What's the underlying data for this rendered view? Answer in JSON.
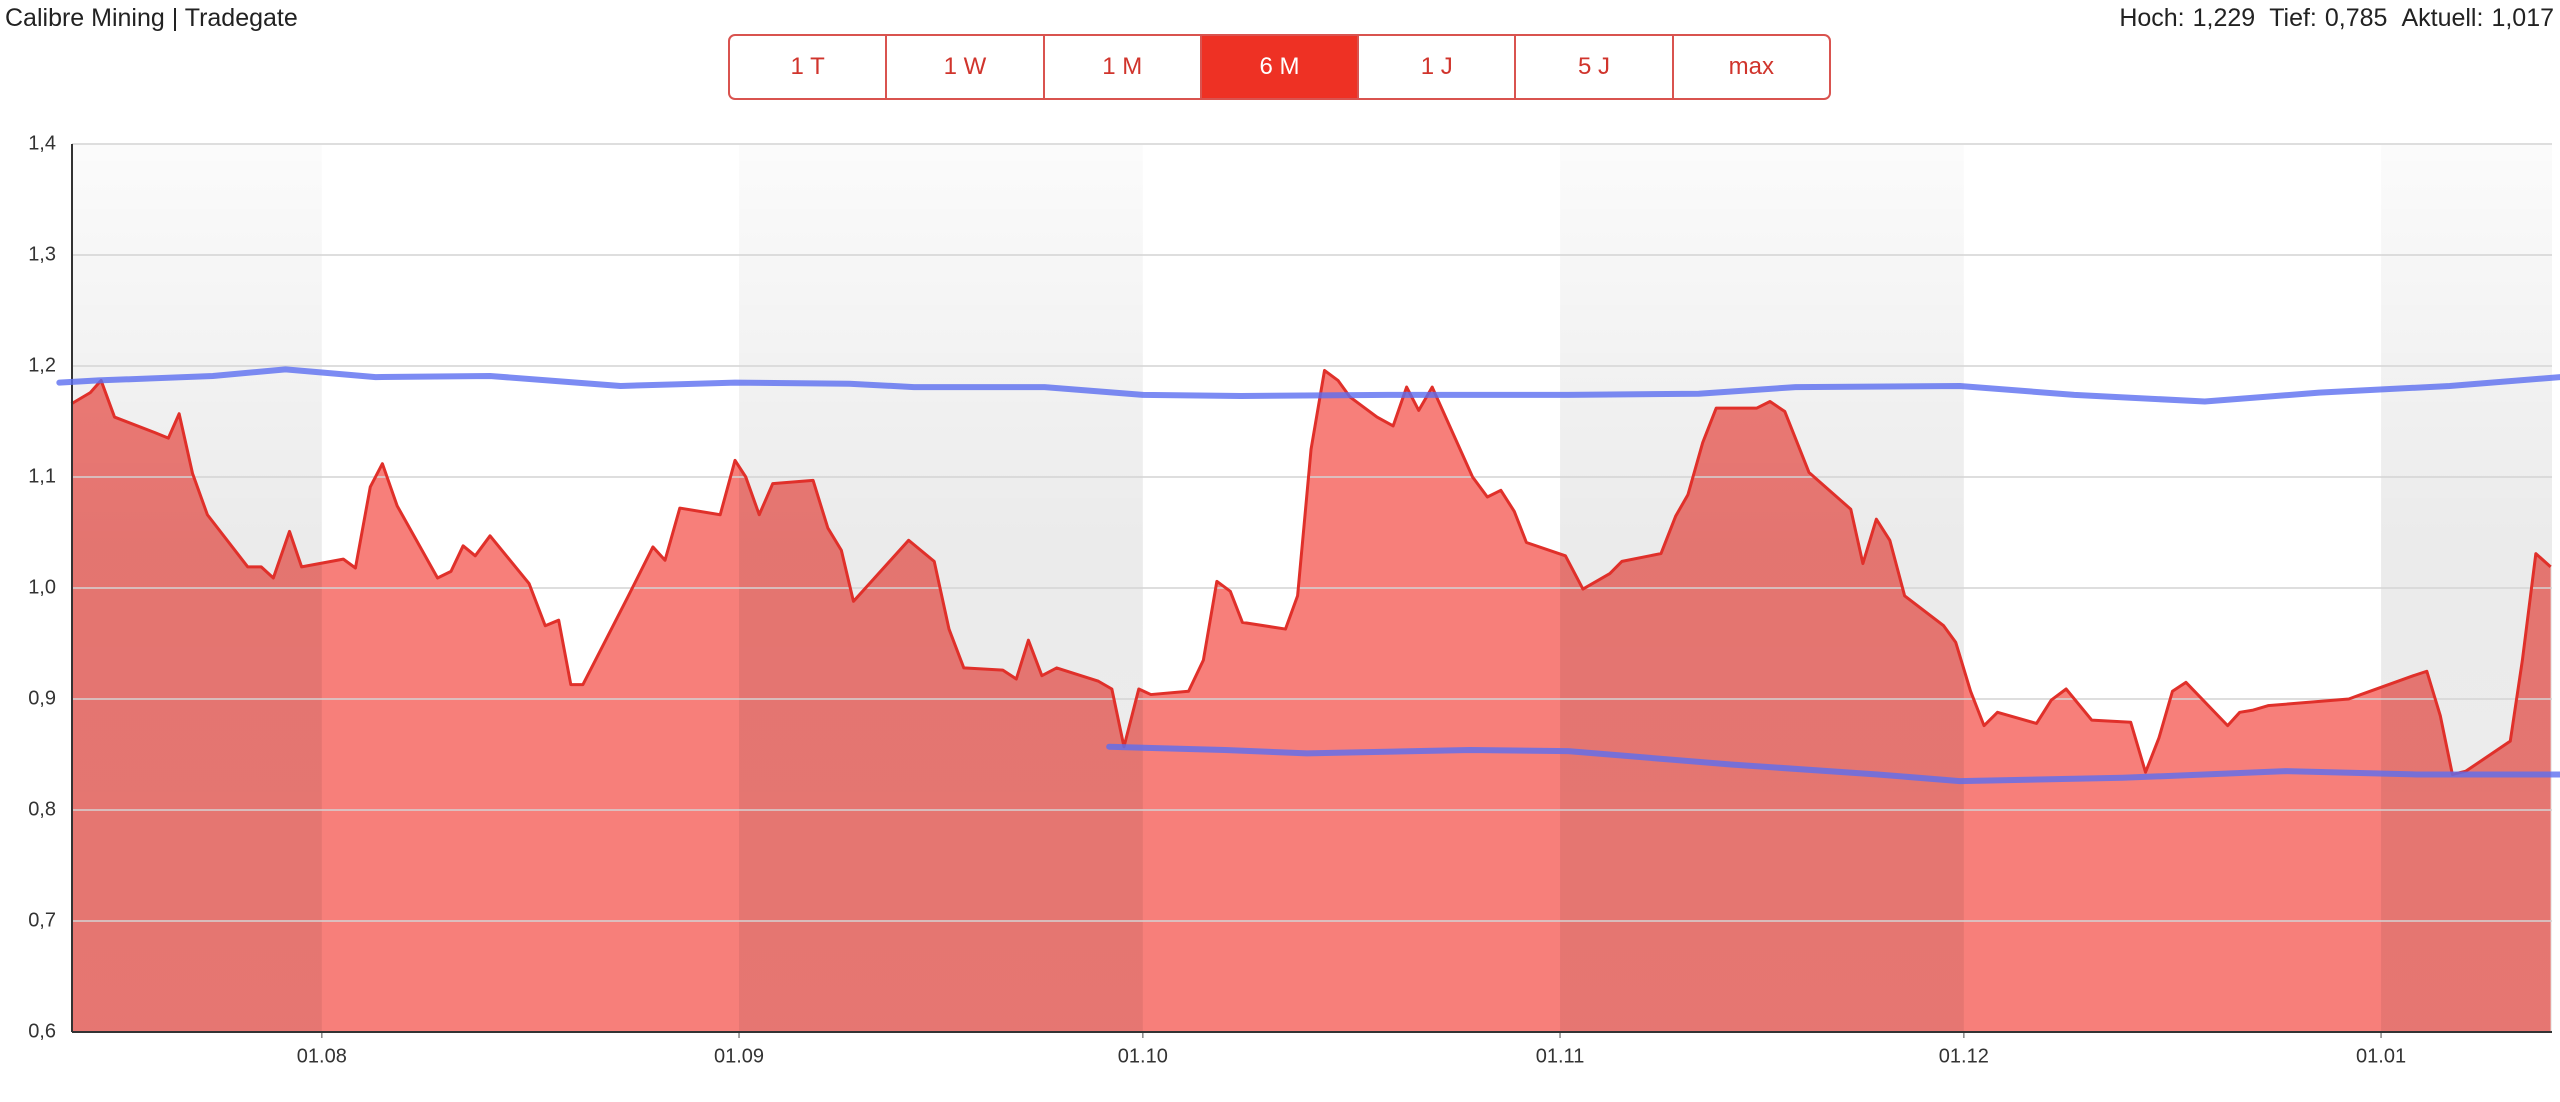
{
  "header": {
    "title": "Calibre Mining | Tradegate",
    "stats": [
      {
        "label": "Hoch:",
        "value": "1,229"
      },
      {
        "label": "Tief:",
        "value": "0,785"
      },
      {
        "label": "Aktuell:",
        "value": "1,017"
      }
    ]
  },
  "buttons": [
    "1 T",
    "1 W",
    "1 M",
    "6 M",
    "1 J",
    "5 J",
    "max"
  ],
  "selected_button": 3,
  "chart_data": {
    "type": "area",
    "color": "#e0302a",
    "fill": "#f77f7a",
    "x": [
      12.4,
      13.8,
      14.6,
      15.6,
      18.6,
      19.6,
      20.4,
      21.4,
      22.5,
      25.5,
      26.5,
      27.4,
      28.6,
      29.5,
      32.6,
      33.5,
      34.6,
      35.5,
      36.6,
      39.6,
      40.6,
      41.5,
      42.4,
      43.5,
      46.4,
      47.6,
      48.6,
      49.5,
      50.4,
      53.7,
      55.6,
      56.5,
      57.6,
      60.6,
      61.7,
      62.5,
      63.5,
      64.5,
      67.5,
      68.6,
      69.6,
      70.5,
      74.6,
      76.5,
      77.6,
      78.7,
      81.6,
      82.6,
      83.5,
      84.5,
      85.6,
      88.7,
      89.7,
      90.6,
      91.7,
      92.6,
      95.4,
      96.5,
      97.5,
      98.5,
      99.4,
      102.6,
      103.5,
      104.5,
      105.5,
      106.5,
      107.4,
      109.4,
      110.6,
      111.6,
      112.5,
      113.5,
      116.5,
      117.6,
      118.6,
      119.6,
      120.5,
      123.4,
      124.7,
      126.7,
      127.6,
      130.5,
      131.6,
      132.5,
      133.6,
      134.6,
      137.6,
      138.6,
      139.7,
      141.5,
      144.6,
      145.5,
      146.5,
      147.5,
      148.6,
      151.5,
      152.4,
      153.5,
      154.5,
      155.5,
      158.4,
      159.5,
      160.6,
      162.5,
      165.4,
      166.5,
      167.5,
      168.5,
      169.5,
      172.6,
      173.5,
      174.5,
      175.6,
      181.6,
      182.5,
      186.4,
      187.4,
      188.4,
      189.3,
      190.3,
      193.6,
      194.5,
      195.5,
      196.6
    ],
    "values": [
      1.166,
      1.176,
      1.187,
      1.154,
      1.14,
      1.135,
      1.157,
      1.103,
      1.066,
      1.019,
      1.019,
      1.009,
      1.051,
      1.019,
      1.026,
      1.018,
      1.091,
      1.112,
      1.074,
      1.009,
      1.015,
      1.038,
      1.029,
      1.047,
      1.004,
      0.966,
      0.971,
      0.913,
      0.913,
      0.991,
      1.037,
      1.025,
      1.072,
      1.066,
      1.115,
      1.1,
      1.066,
      1.094,
      1.097,
      1.054,
      1.034,
      0.988,
      1.043,
      1.024,
      0.963,
      0.928,
      0.926,
      0.918,
      0.953,
      0.921,
      0.928,
      0.916,
      0.909,
      0.857,
      0.909,
      0.904,
      0.907,
      0.935,
      1.006,
      0.997,
      0.969,
      0.963,
      0.993,
      1.125,
      1.196,
      1.187,
      1.172,
      1.154,
      1.146,
      1.181,
      1.16,
      1.181,
      1.1,
      1.082,
      1.088,
      1.069,
      1.041,
      1.029,
      0.999,
      1.013,
      1.024,
      1.031,
      1.065,
      1.084,
      1.131,
      1.162,
      1.162,
      1.168,
      1.159,
      1.104,
      1.071,
      1.022,
      1.062,
      1.043,
      0.993,
      0.966,
      0.951,
      0.907,
      0.876,
      0.888,
      0.878,
      0.899,
      0.909,
      0.881,
      0.879,
      0.834,
      0.865,
      0.907,
      0.915,
      0.876,
      0.888,
      0.89,
      0.894,
      0.9,
      0.904,
      0.921,
      0.925,
      0.885,
      0.832,
      0.835,
      0.862,
      0.935,
      1.031,
      1.019
    ],
    "annotation_lines": [
      {
        "color": "#5b6ef0",
        "x": [
          11.5,
          14.4,
          22.9,
          28.3,
          35.0,
          43.5,
          53.2,
          61.7,
          70.2,
          75.0,
          84.7,
          92.0,
          99.3,
          110.2,
          123.6,
          133.3,
          140.5,
          152.7,
          161.2,
          170.9,
          179.4,
          189.1,
          197.3
        ],
        "values": [
          1.185,
          1.187,
          1.191,
          1.197,
          1.19,
          1.191,
          1.182,
          1.185,
          1.184,
          1.181,
          1.181,
          1.174,
          1.173,
          1.174,
          1.174,
          1.175,
          1.181,
          1.182,
          1.174,
          1.168,
          1.176,
          1.182,
          1.19
        ]
      },
      {
        "color": "#5b6ef0",
        "x": [
          89.5,
          98.1,
          104.2,
          116.3,
          123.6,
          135.7,
          146.6,
          152.7,
          164.8,
          176.9,
          186.6,
          197.3
        ],
        "values": [
          0.857,
          0.854,
          0.851,
          0.854,
          0.853,
          0.841,
          0.832,
          0.826,
          0.829,
          0.835,
          0.832,
          0.832
        ]
      }
    ],
    "xlim": [
      12.44,
      196.7
    ],
    "xticks": [
      {
        "value": 31,
        "label": "01.08"
      },
      {
        "value": 62,
        "label": "01.09"
      },
      {
        "value": 92,
        "label": "01.10"
      },
      {
        "value": 123,
        "label": "01.11"
      },
      {
        "value": 153,
        "label": "01.12"
      },
      {
        "value": 184,
        "label": "01.01"
      }
    ],
    "ylim": [
      0.6,
      1.4
    ],
    "yticks": [
      {
        "value": 0.6,
        "label": "0,6"
      },
      {
        "value": 0.7,
        "label": "0,7"
      },
      {
        "value": 0.8,
        "label": "0,8"
      },
      {
        "value": 0.9,
        "label": "0,9"
      },
      {
        "value": 1.0,
        "label": "1,0"
      },
      {
        "value": 1.1,
        "label": "1,1"
      },
      {
        "value": 1.2,
        "label": "1,2"
      },
      {
        "value": 1.3,
        "label": "1,3"
      },
      {
        "value": 1.4,
        "label": "1,4"
      }
    ],
    "grid": true
  }
}
